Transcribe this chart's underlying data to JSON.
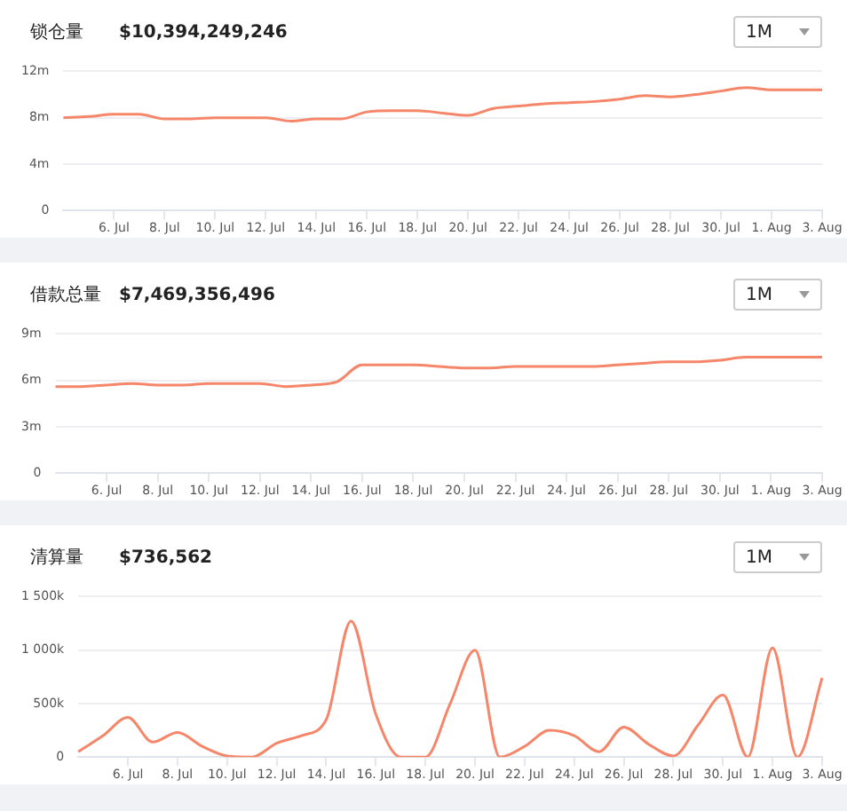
{
  "chart_data": [
    {
      "type": "line",
      "title": "锁仓量",
      "subtitle": "$10,394,249,246",
      "annotations": [
        "1M"
      ],
      "categories": [
        null,
        null,
        "6. Jul",
        null,
        "8. Jul",
        null,
        "10. Jul",
        null,
        "12. Jul",
        null,
        "14. Jul",
        null,
        "16. Jul",
        null,
        "18. Jul",
        null,
        "20. Jul",
        null,
        "22. Jul",
        null,
        "24. Jul",
        null,
        "26. Jul",
        null,
        "28. Jul",
        null,
        "30. Jul",
        null,
        "1. Aug",
        null,
        "3. Aug"
      ],
      "series": [
        {
          "color": "#f5866a",
          "values": [
            8.0,
            8.1,
            8.3,
            8.3,
            7.9,
            7.9,
            8.0,
            8.0,
            8.0,
            7.7,
            7.9,
            7.9,
            8.5,
            8.6,
            8.6,
            8.4,
            8.2,
            8.8,
            9.0,
            9.2,
            9.3,
            9.4,
            9.6,
            9.9,
            9.8,
            10.0,
            10.3,
            10.6,
            10.4,
            10.4,
            10.4
          ]
        }
      ],
      "ylim": [
        0,
        12
      ],
      "yticks": [
        {
          "value": 0,
          "label": "0"
        },
        {
          "value": 4,
          "label": "4m"
        },
        {
          "value": 8,
          "label": "8m"
        },
        {
          "value": 12,
          "label": "12m"
        }
      ],
      "grid": "y",
      "legend": false,
      "marker": "none"
    },
    {
      "type": "line",
      "title": "借款总量",
      "subtitle": "$7,469,356,496",
      "annotations": [
        "1M"
      ],
      "categories": [
        null,
        null,
        "6. Jul",
        null,
        "8. Jul",
        null,
        "10. Jul",
        null,
        "12. Jul",
        null,
        "14. Jul",
        null,
        "16. Jul",
        null,
        "18. Jul",
        null,
        "20. Jul",
        null,
        "22. Jul",
        null,
        "24. Jul",
        null,
        "26. Jul",
        null,
        "28. Jul",
        null,
        "30. Jul",
        null,
        "1. Aug",
        null,
        "3. Aug"
      ],
      "series": [
        {
          "color": "#f5866a",
          "values": [
            5.6,
            5.6,
            5.7,
            5.8,
            5.7,
            5.7,
            5.8,
            5.8,
            5.8,
            5.6,
            5.7,
            5.9,
            7.0,
            7.0,
            7.0,
            6.9,
            6.8,
            6.8,
            6.9,
            6.9,
            6.9,
            6.9,
            7.0,
            7.1,
            7.2,
            7.2,
            7.3,
            7.5,
            7.5,
            7.5,
            7.5
          ]
        }
      ],
      "ylim": [
        0,
        9
      ],
      "yticks": [
        {
          "value": 0,
          "label": "0"
        },
        {
          "value": 3,
          "label": "3m"
        },
        {
          "value": 6,
          "label": "6m"
        },
        {
          "value": 9,
          "label": "9m"
        }
      ],
      "grid": "y",
      "legend": false,
      "marker": "none"
    },
    {
      "type": "line",
      "title": "清算量",
      "subtitle": "$736,562",
      "annotations": [
        "1M"
      ],
      "categories": [
        null,
        null,
        "6. Jul",
        null,
        "8. Jul",
        null,
        "10. Jul",
        null,
        "12. Jul",
        null,
        "14. Jul",
        null,
        "16. Jul",
        null,
        "18. Jul",
        null,
        "20. Jul",
        null,
        "22. Jul",
        null,
        "24. Jul",
        null,
        "26. Jul",
        null,
        "28. Jul",
        null,
        "30. Jul",
        null,
        "1. Aug",
        null,
        "3. Aug"
      ],
      "series": [
        {
          "color": "#f5866a",
          "values": [
            50,
            200,
            370,
            140,
            230,
            100,
            10,
            0,
            130,
            200,
            350,
            1270,
            400,
            0,
            0,
            500,
            1000,
            0,
            100,
            250,
            200,
            50,
            280,
            120,
            10,
            300,
            580,
            0,
            1020,
            0,
            740
          ]
        }
      ],
      "ylim": [
        0,
        1500
      ],
      "yticks": [
        {
          "value": 0,
          "label": "0"
        },
        {
          "value": 500,
          "label": "500k"
        },
        {
          "value": 1000,
          "label": "1 000k"
        },
        {
          "value": 1500,
          "label": "1 500k"
        }
      ],
      "grid": "y",
      "legend": false,
      "marker": "none"
    }
  ]
}
